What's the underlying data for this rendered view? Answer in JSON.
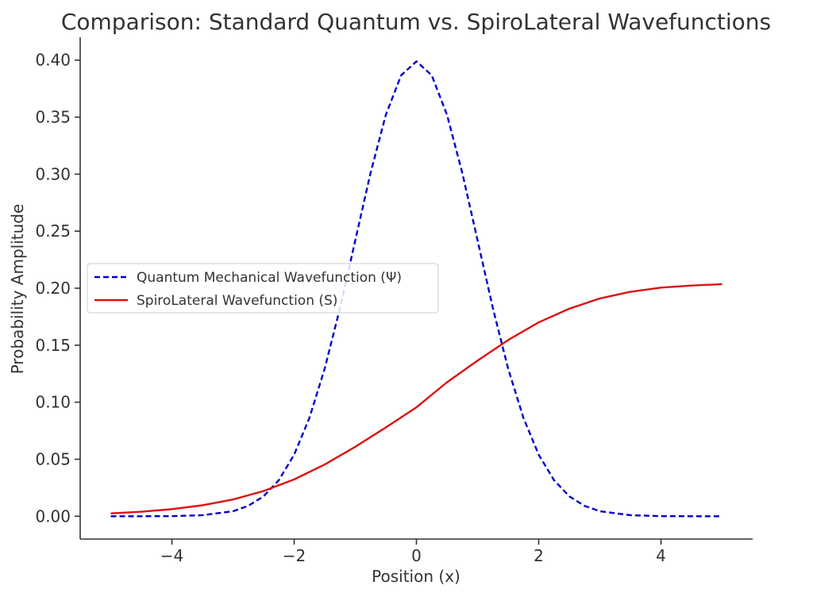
{
  "chart_data": {
    "type": "line",
    "title": "Comparison: Standard Quantum vs. SpiroLateral Wavefunctions",
    "xlabel": "Position (x)",
    "ylabel": "Probability Amplitude",
    "xlim": [
      -5.5,
      5.5
    ],
    "ylim": [
      -0.02,
      0.42
    ],
    "xticks": [
      -4,
      -2,
      0,
      2,
      4
    ],
    "xtick_labels": [
      "−4",
      "−2",
      "0",
      "2",
      "4"
    ],
    "yticks": [
      0.0,
      0.05,
      0.1,
      0.15,
      0.2,
      0.25,
      0.3,
      0.35,
      0.4
    ],
    "ytick_labels": [
      "0.00",
      "0.05",
      "0.10",
      "0.15",
      "0.20",
      "0.25",
      "0.30",
      "0.35",
      "0.40"
    ],
    "grid": false,
    "legend_position": "center-left",
    "series": [
      {
        "name": "Quantum Mechanical Wavefunction (Ψ)",
        "color": "#0000cc",
        "style": "dashed",
        "x": [
          -5,
          -4.5,
          -4,
          -3.5,
          -3,
          -2.75,
          -2.5,
          -2.25,
          -2,
          -1.75,
          -1.5,
          -1.25,
          -1,
          -0.75,
          -0.5,
          -0.25,
          0,
          0.25,
          0.5,
          0.75,
          1,
          1.25,
          1.5,
          1.75,
          2,
          2.25,
          2.5,
          2.75,
          3,
          3.5,
          4,
          4.5,
          5
        ],
        "y": [
          0.0,
          0.0,
          0.0001,
          0.0009,
          0.0044,
          0.0091,
          0.0175,
          0.0317,
          0.054,
          0.0863,
          0.1295,
          0.1826,
          0.242,
          0.3011,
          0.3521,
          0.3867,
          0.3989,
          0.3867,
          0.3521,
          0.3011,
          0.242,
          0.1826,
          0.1295,
          0.0863,
          0.054,
          0.0317,
          0.0175,
          0.0091,
          0.0044,
          0.0009,
          0.0001,
          0.0,
          0.0
        ]
      },
      {
        "name": "SpiroLateral Wavefunction (S)",
        "color": "#dd1111",
        "style": "solid",
        "x": [
          -5,
          -4.5,
          -4,
          -3.5,
          -3,
          -2.5,
          -2,
          -1.5,
          -1,
          -0.5,
          0,
          0.5,
          1,
          1.5,
          2,
          2.5,
          3,
          3.5,
          4,
          4.5,
          5
        ],
        "y": [
          0.0025,
          0.004,
          0.0062,
          0.0096,
          0.0147,
          0.0221,
          0.0323,
          0.0454,
          0.0609,
          0.0779,
          0.0955,
          0.1175,
          0.1365,
          0.1545,
          0.17,
          0.182,
          0.191,
          0.1968,
          0.2005,
          0.2023,
          0.2035
        ]
      }
    ]
  }
}
